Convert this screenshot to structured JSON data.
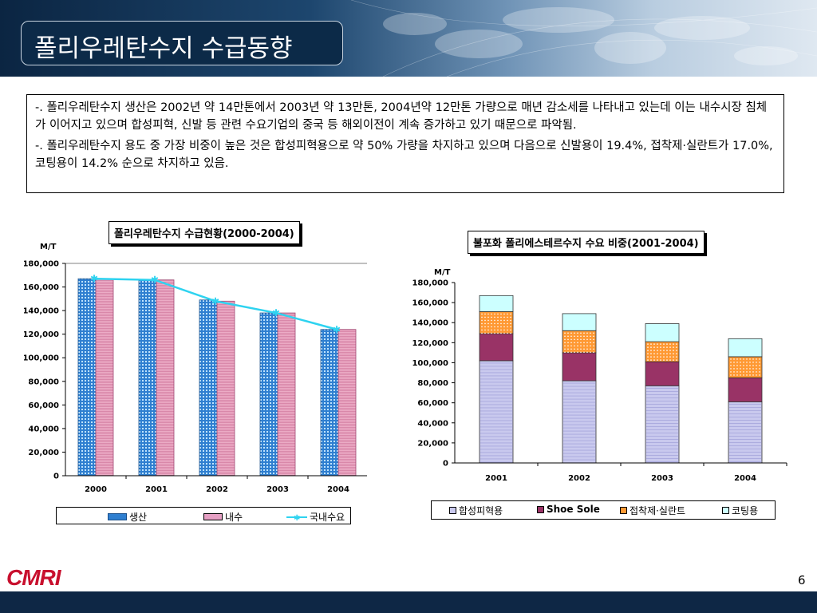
{
  "header": {
    "title": "폴리우레탄수지 수급동향"
  },
  "summary": {
    "para1": "-. 폴리우레탄수지 생산은 2002년 약 14만톤에서 2003년 약 13만톤, 2004년약 12만톤 가량으로 매년 감소세를 나타내고 있는데 이는 내수시장 침체가 이어지고 있으며 합성피혁, 신발 등 관련 수요기업의 중국 등 해외이전이 계속 증가하고 있기 때문으로 파악됨.",
    "para2": "-. 폴리우레탄수지 용도 중 가장 비중이 높은 것은 합성피혁용으로 약 50% 가량을 차지하고 있으며 다음으로 신발용이 19.4%, 접착제·실란트가 17.0%, 코팅용이  14.2% 순으로 차지하고 있음."
  },
  "chart_data": [
    {
      "type": "bar",
      "title": "폴리우레탄수지 수급현황(2000-2004)",
      "ylabel": "M/T",
      "categories": [
        "2000",
        "2001",
        "2002",
        "2003",
        "2004"
      ],
      "ylim": [
        0,
        180000
      ],
      "yticks": [
        "0",
        "20,000",
        "40,000",
        "60,000",
        "80,000",
        "100,000",
        "120,000",
        "140,000",
        "160,000",
        "180,000"
      ],
      "series": [
        {
          "name": "생산",
          "kind": "bar",
          "color": "#2f7fd0",
          "values": [
            167000,
            166000,
            149000,
            138000,
            124000
          ]
        },
        {
          "name": "내수",
          "kind": "bar",
          "color": "#e6a0c4",
          "values": [
            167000,
            166000,
            148000,
            138000,
            124000
          ]
        },
        {
          "name": "국내수요",
          "kind": "line",
          "color": "#2ed3f0",
          "values": [
            167000,
            166000,
            148000,
            138000,
            124000
          ]
        }
      ],
      "legend_position": "bottom"
    },
    {
      "type": "bar",
      "stacked": true,
      "title": "불포화 폴리에스테르수지 수요 비중(2001-2004)",
      "ylabel": "M/T",
      "categories": [
        "2001",
        "2002",
        "2003",
        "2004"
      ],
      "ylim": [
        0,
        180000
      ],
      "yticks": [
        "0",
        "20,000",
        "40,000",
        "60,000",
        "80,000",
        "100,000",
        "120,000",
        "140,000",
        "160,000",
        "180,000"
      ],
      "series": [
        {
          "name": "합성피혁용",
          "color": "#c9c9ee",
          "values": [
            102000,
            82000,
            77000,
            61000
          ]
        },
        {
          "name": "Shoe Sole",
          "color": "#993366",
          "values": [
            27000,
            28000,
            24000,
            24000
          ]
        },
        {
          "name": "접착제·실란트",
          "color": "#ff9933",
          "values": [
            22000,
            22000,
            20000,
            21000
          ]
        },
        {
          "name": "코팅용",
          "color": "#ccffff",
          "values": [
            16000,
            17000,
            18000,
            18000
          ]
        }
      ],
      "legend_position": "bottom"
    }
  ],
  "footer": {
    "logo": "CMRI",
    "page": "6"
  }
}
